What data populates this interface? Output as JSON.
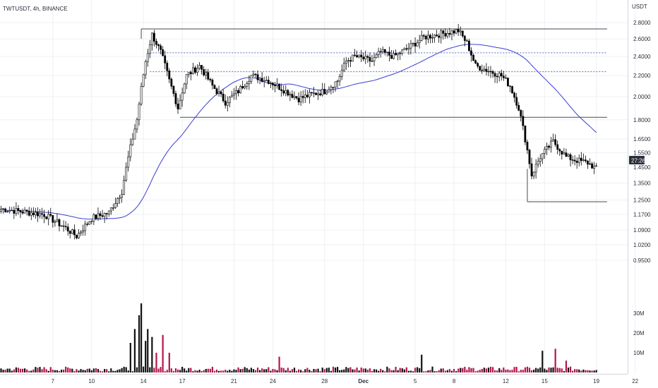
{
  "header": {
    "symbol_label": "TWTUSDT, 4h, BINANCE",
    "currency_label": "USDT"
  },
  "price_tag": {
    "label": "27:26",
    "background": "#2a2e39"
  },
  "colors": {
    "up": "#000000",
    "down": "#000000",
    "ma": "#3a3fce",
    "vol_up": "#111111",
    "vol_down": "#b5164a",
    "levels": "#4a4a4a",
    "dashed": "#5c6bc0"
  },
  "chart_data": {
    "type": "candlestick",
    "title": "",
    "price_axis": {
      "ticks": [
        2.8,
        2.6,
        2.4,
        2.2,
        2.0,
        1.8,
        1.65,
        1.55,
        1.45,
        1.35,
        1.25,
        1.17,
        1.09,
        1.02,
        0.95
      ],
      "tick_labels": [
        "2.8000",
        "2.6000",
        "2.4000",
        "2.2000",
        "2.0000",
        "1.8000",
        "1.6500",
        "1.5500",
        "1.4500",
        "1.3500",
        "1.2500",
        "1.1700",
        "1.0900",
        "1.0200",
        "0.9500"
      ],
      "scale": "log"
    },
    "volume_axis": {
      "ticks": [
        30,
        20,
        10
      ],
      "tick_labels": [
        "30M",
        "20M",
        "10M"
      ],
      "unit": "M"
    },
    "time_axis": {
      "ticks": [
        {
          "label": "7",
          "bold": false
        },
        {
          "label": "10",
          "bold": false
        },
        {
          "label": "14",
          "bold": false
        },
        {
          "label": "17",
          "bold": false
        },
        {
          "label": "21",
          "bold": false
        },
        {
          "label": "24",
          "bold": false
        },
        {
          "label": "28",
          "bold": false
        },
        {
          "label": "Dec",
          "bold": true
        },
        {
          "label": "5",
          "bold": false
        },
        {
          "label": "8",
          "bold": false
        },
        {
          "label": "12",
          "bold": false
        },
        {
          "label": "15",
          "bold": false
        },
        {
          "label": "19",
          "bold": false
        },
        {
          "label": "22",
          "bold": false
        }
      ],
      "bars_per_day": 6,
      "first_tick_bar_index": 24
    },
    "key_points": [
      [
        0,
        1.2
      ],
      [
        20,
        1.17
      ],
      [
        30,
        1.1
      ],
      [
        35,
        1.06
      ],
      [
        42,
        1.15
      ],
      [
        50,
        1.18
      ],
      [
        56,
        1.3
      ],
      [
        63,
        1.8
      ],
      [
        67,
        2.35
      ],
      [
        70,
        2.65
      ],
      [
        74,
        2.45
      ],
      [
        78,
        2.15
      ],
      [
        82,
        1.9
      ],
      [
        86,
        2.2
      ],
      [
        92,
        2.3
      ],
      [
        98,
        2.1
      ],
      [
        104,
        1.95
      ],
      [
        110,
        2.05
      ],
      [
        116,
        2.2
      ],
      [
        124,
        2.15
      ],
      [
        132,
        2.05
      ],
      [
        138,
        1.98
      ],
      [
        144,
        2.02
      ],
      [
        150,
        2.05
      ],
      [
        156,
        2.15
      ],
      [
        160,
        2.35
      ],
      [
        164,
        2.4
      ],
      [
        172,
        2.35
      ],
      [
        176,
        2.45
      ],
      [
        182,
        2.4
      ],
      [
        188,
        2.48
      ],
      [
        196,
        2.62
      ],
      [
        204,
        2.66
      ],
      [
        212,
        2.7
      ],
      [
        216,
        2.55
      ],
      [
        220,
        2.3
      ],
      [
        226,
        2.25
      ],
      [
        232,
        2.2
      ],
      [
        236,
        2.1
      ],
      [
        240,
        1.9
      ],
      [
        243,
        1.65
      ],
      [
        246,
        1.4
      ],
      [
        250,
        1.52
      ],
      [
        256,
        1.63
      ],
      [
        262,
        1.52
      ],
      [
        266,
        1.5
      ],
      [
        272,
        1.48
      ],
      [
        276,
        1.44
      ]
    ],
    "volume_peaks": [
      {
        "bar": 60,
        "value": 15
      },
      {
        "bar": 62,
        "value": 22
      },
      {
        "bar": 64,
        "value": 29
      },
      {
        "bar": 65,
        "value": 35
      },
      {
        "bar": 67,
        "value": 16
      },
      {
        "bar": 68,
        "value": 22
      },
      {
        "bar": 70,
        "value": 18
      },
      {
        "bar": 72,
        "value": 10
      },
      {
        "bar": 75,
        "value": 19
      },
      {
        "bar": 78,
        "value": 10
      },
      {
        "bar": 129,
        "value": 8
      },
      {
        "bar": 195,
        "value": 9
      },
      {
        "bar": 251,
        "value": 11
      },
      {
        "bar": 257,
        "value": 12
      },
      {
        "bar": 262,
        "value": 6
      }
    ],
    "levels": [
      {
        "from_bar": 65,
        "to_bar": 281,
        "price": 2.72,
        "style": "solid"
      },
      {
        "from_bar": 83,
        "to_bar": 281,
        "price": 1.82,
        "style": "solid"
      },
      {
        "from_bar": 244,
        "to_bar": 281,
        "price": 1.24,
        "style": "solid"
      },
      {
        "from_bar": 69,
        "to_bar": 281,
        "price": 2.44,
        "style": "dashed"
      },
      {
        "from_bar": 69,
        "to_bar": 281,
        "price": 2.24,
        "style": "dashed"
      }
    ],
    "moving_average_period": 50
  }
}
